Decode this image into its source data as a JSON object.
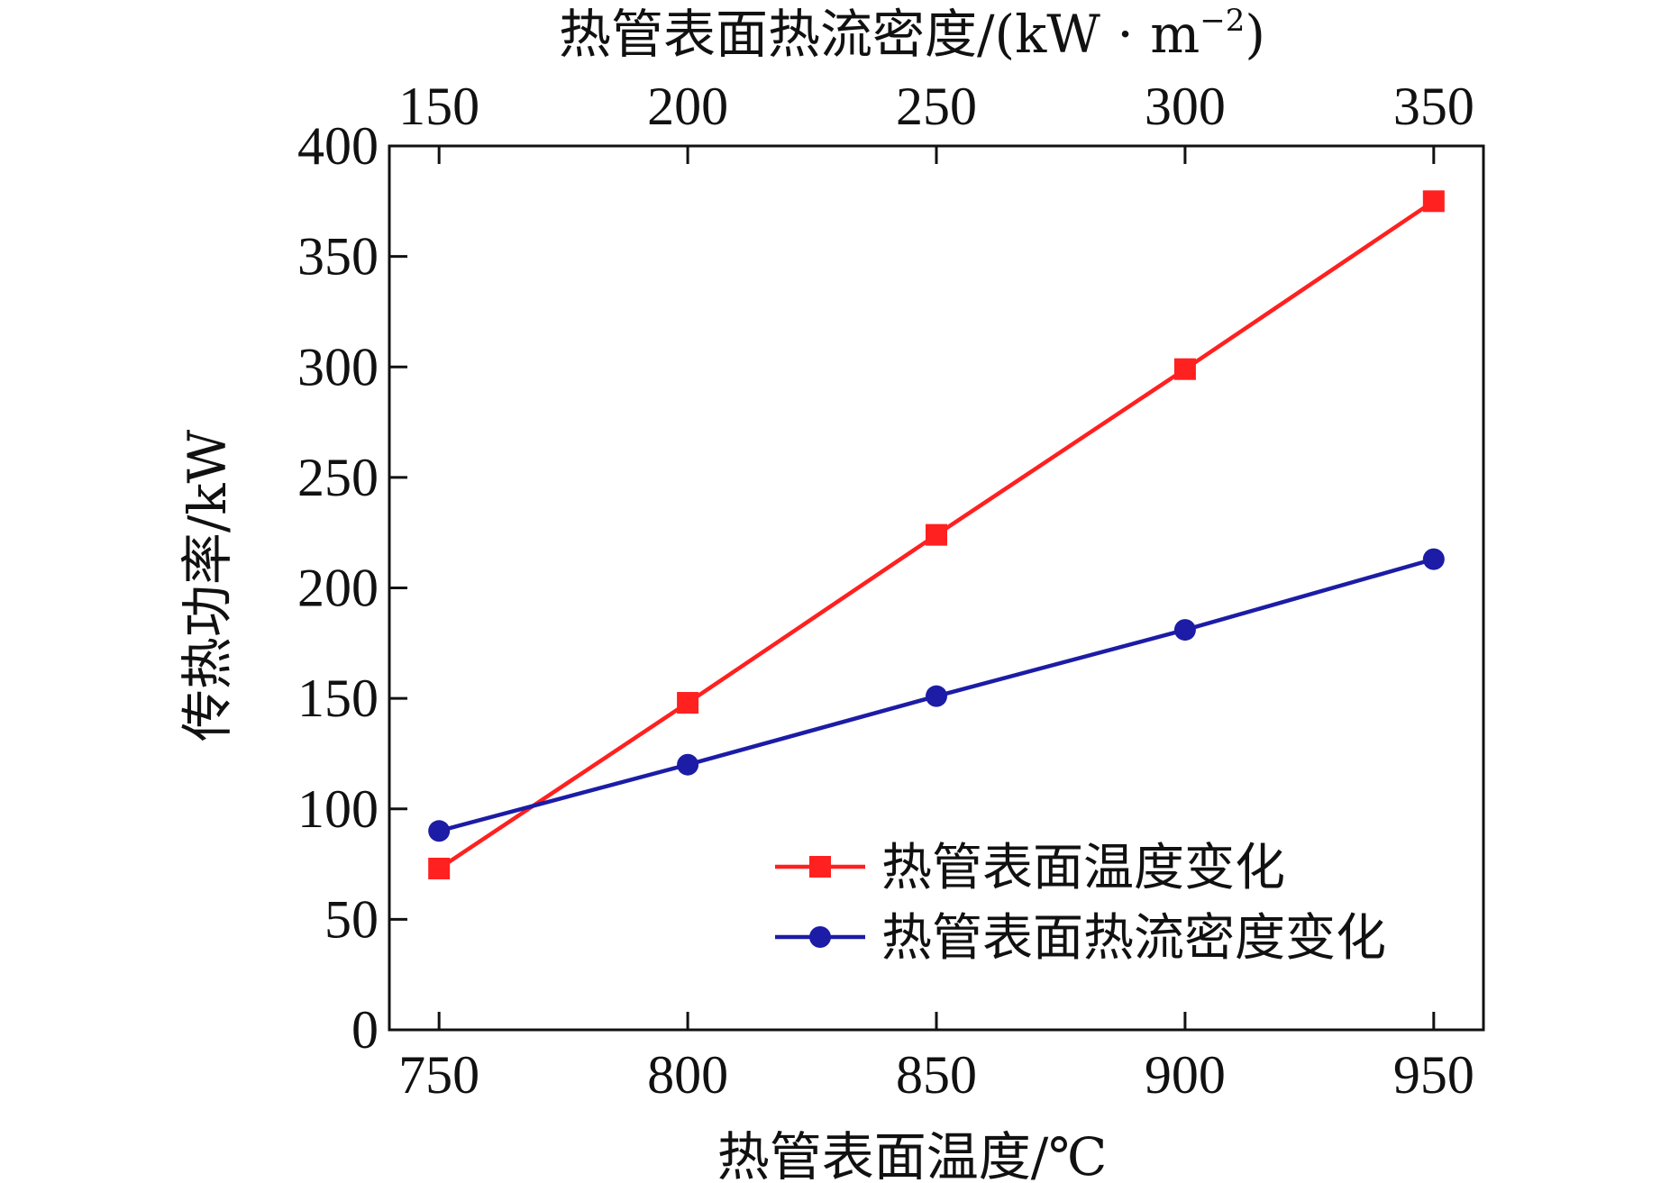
{
  "chart_data": {
    "type": "line",
    "xlabel": "热管表面温度/℃",
    "ylabel": "传热功率/kW",
    "x2label_main": "热管表面热流密度/(kW · m",
    "x2label_sup": "−2",
    "x2label_close": ")",
    "x": [
      750,
      800,
      850,
      900,
      950
    ],
    "x_ticks": [
      "750",
      "800",
      "850",
      "900",
      "950"
    ],
    "x2_ticks": [
      "150",
      "200",
      "250",
      "300",
      "350"
    ],
    "xlim": [
      740,
      960
    ],
    "ylim": [
      0,
      400
    ],
    "y_ticks": [
      "0",
      "50",
      "100",
      "150",
      "200",
      "250",
      "300",
      "350",
      "400"
    ],
    "y_tick_values": [
      0,
      50,
      100,
      150,
      200,
      250,
      300,
      350,
      400
    ],
    "grid": false,
    "legend_position": "bottom-right",
    "series": [
      {
        "name": "热管表面温度变化",
        "values": [
          73,
          148,
          224,
          299,
          375
        ],
        "color": "#ff2020",
        "marker": "square"
      },
      {
        "name": "热管表面热流密度变化",
        "values": [
          90,
          120,
          151,
          181,
          213
        ],
        "color": "#1c1ca6",
        "marker": "circle"
      }
    ]
  }
}
